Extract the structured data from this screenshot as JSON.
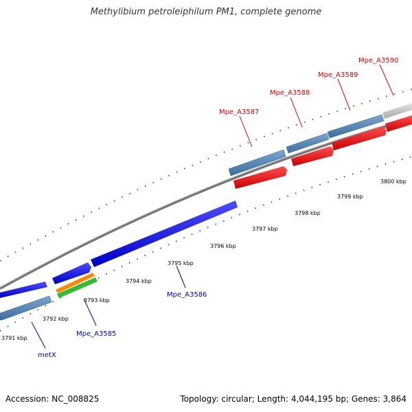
{
  "title": "Methylibium petroleiphilum PM1, complete genome",
  "footer": {
    "accession": "Accession: NC_008825",
    "summary": "Topology: circular; Length: 4,044,195 bp; Genes: 3,864"
  },
  "scale_labels": [
    "3791 kbp",
    "3792 kbp",
    "3793 kbp",
    "3794 kbp",
    "3795 kbp",
    "3796 kbp",
    "3797 kbp",
    "3798 kbp",
    "3799 kbp",
    "3800 kbp"
  ],
  "genes": [
    {
      "name": "metX",
      "color": "#0000cc"
    },
    {
      "name": "Mpe_A3585",
      "color": "#0000cc"
    },
    {
      "name": "Mpe_A3586",
      "color": "#0000cc"
    },
    {
      "name": "Mpe_A3587",
      "color": "#dd0000"
    },
    {
      "name": "Mpe_A3588",
      "color": "#dd0000"
    },
    {
      "name": "Mpe_A3589",
      "color": "#dd0000"
    },
    {
      "name": "Mpe_A3590",
      "color": "#dd0000"
    }
  ],
  "colors": {
    "cds_forward": "#ff0000",
    "cds_reverse": "#0000ff",
    "gene_track": "#4a7fb0",
    "gene_track_grey": "#c8c8c8",
    "orange_feature": "#ff8800",
    "green_feature": "#33bb33",
    "backbone": "#888888",
    "ticks": "#1f7a1f"
  }
}
